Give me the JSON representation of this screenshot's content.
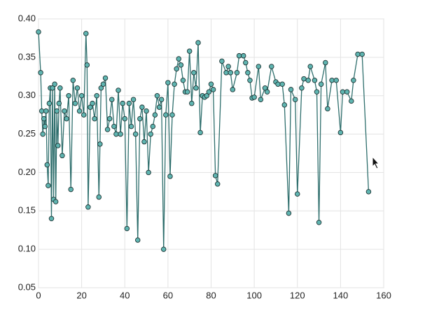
{
  "chart_data": {
    "type": "line",
    "x": [
      0,
      1,
      1.5,
      2,
      2.5,
      3,
      3.5,
      4,
      4.5,
      5,
      5.5,
      6,
      6.5,
      7,
      7.5,
      8,
      8.5,
      9,
      9.5,
      10,
      11,
      12,
      13,
      14,
      15,
      16,
      17,
      18,
      19,
      20,
      21,
      22,
      22.5,
      23,
      24,
      25,
      26,
      27,
      28,
      28.5,
      29,
      30,
      31,
      32,
      33,
      34,
      35,
      36,
      37,
      38,
      39,
      40,
      41,
      42,
      43,
      44,
      45,
      46,
      47,
      48,
      49,
      50,
      51,
      52,
      53,
      54,
      55,
      56,
      57,
      58,
      59,
      60,
      61,
      62,
      63,
      64,
      65,
      66,
      67,
      68,
      69,
      70,
      71,
      72,
      73,
      74,
      75,
      76,
      77,
      78,
      79,
      80,
      81,
      82,
      83,
      85,
      87,
      88,
      89,
      90,
      92,
      93,
      95,
      96,
      97,
      98,
      99,
      100,
      102,
      103,
      105,
      106,
      108,
      110,
      111,
      113,
      114,
      116,
      117,
      119,
      120,
      122,
      123,
      125,
      126,
      128,
      129,
      130,
      131,
      133,
      134,
      136,
      138,
      140,
      141,
      143,
      145,
      146,
      148,
      150,
      153
    ],
    "series": [
      {
        "color": "#2f6f6d",
        "marker_color": "#5fb5b1",
        "values": [
          0.383,
          0.33,
          0.28,
          0.25,
          0.27,
          0.26,
          0.28,
          0.21,
          0.183,
          0.29,
          0.31,
          0.14,
          0.31,
          0.165,
          0.315,
          0.162,
          0.28,
          0.235,
          0.29,
          0.31,
          0.222,
          0.28,
          0.27,
          0.3,
          0.178,
          0.32,
          0.29,
          0.31,
          0.28,
          0.3,
          0.275,
          0.381,
          0.34,
          0.155,
          0.285,
          0.29,
          0.27,
          0.3,
          0.168,
          0.237,
          0.31,
          0.315,
          0.323,
          0.256,
          0.27,
          0.295,
          0.26,
          0.25,
          0.307,
          0.25,
          0.29,
          0.27,
          0.127,
          0.29,
          0.26,
          0.295,
          0.25,
          0.112,
          0.27,
          0.285,
          0.24,
          0.28,
          0.2,
          0.25,
          0.26,
          0.275,
          0.3,
          0.285,
          0.295,
          0.1,
          0.275,
          0.317,
          0.195,
          0.275,
          0.315,
          0.335,
          0.348,
          0.34,
          0.32,
          0.305,
          0.305,
          0.358,
          0.29,
          0.33,
          0.31,
          0.369,
          0.252,
          0.3,
          0.298,
          0.3,
          0.305,
          0.315,
          0.308,
          0.196,
          0.185,
          0.345,
          0.33,
          0.338,
          0.33,
          0.308,
          0.33,
          0.352,
          0.352,
          0.343,
          0.33,
          0.32,
          0.297,
          0.298,
          0.338,
          0.295,
          0.31,
          0.305,
          0.338,
          0.318,
          0.315,
          0.315,
          0.288,
          0.147,
          0.308,
          0.295,
          0.172,
          0.31,
          0.322,
          0.32,
          0.338,
          0.32,
          0.305,
          0.135,
          0.315,
          0.343,
          0.283,
          0.32,
          0.32,
          0.252,
          0.305,
          0.305,
          0.293,
          0.32,
          0.354,
          0.354,
          0.175
        ]
      }
    ],
    "xlim": [
      0,
      160
    ],
    "xticks": [
      0,
      20,
      40,
      60,
      80,
      100,
      120,
      140,
      160
    ],
    "ylim": [
      0.05,
      0.4
    ],
    "yticks": [
      0.05,
      {
        "value": 0.1,
        "label": "0.10"
      },
      0.15,
      {
        "value": 0.2,
        "label": "0.20"
      },
      0.25,
      {
        "value": 0.3,
        "label": "0.30"
      },
      0.35,
      {
        "value": 0.4,
        "label": "0.40"
      }
    ],
    "grid": true
  }
}
